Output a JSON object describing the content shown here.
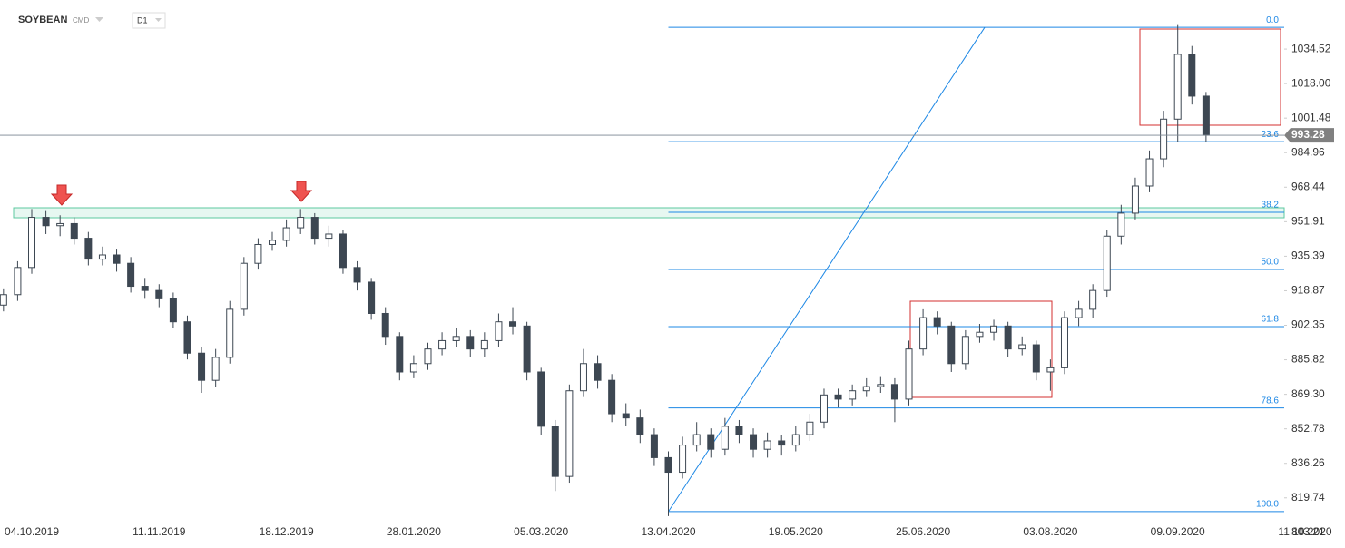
{
  "header": {
    "symbol": "SOYBEAN",
    "market": "CMD",
    "timeframe": "D1"
  },
  "chart_data": {
    "type": "candlestick",
    "categories": [
      null,
      null,
      "04.10.2019",
      null,
      null,
      null,
      null,
      null,
      null,
      null,
      null,
      "11.11.2019",
      null,
      null,
      null,
      null,
      null,
      null,
      null,
      null,
      "18.12.2019",
      null,
      null,
      null,
      null,
      null,
      null,
      null,
      null,
      "28.01.2020",
      null,
      null,
      null,
      null,
      null,
      null,
      null,
      null,
      "05.03.2020",
      null,
      null,
      null,
      null,
      null,
      null,
      null,
      null,
      "13.04.2020",
      null,
      null,
      null,
      null,
      null,
      null,
      null,
      null,
      "19.05.2020",
      null,
      null,
      null,
      null,
      null,
      null,
      null,
      null,
      "25.06.2020",
      null,
      null,
      null,
      null,
      null,
      null,
      null,
      null,
      "03.08.2020",
      null,
      null,
      null,
      null,
      null,
      null,
      null,
      null,
      "09.09.2020",
      null,
      null,
      null,
      null,
      null,
      null,
      null,
      null,
      "11.10.2020"
    ],
    "values": [
      [
        912,
        920,
        909,
        917
      ],
      [
        917,
        933,
        914,
        930
      ],
      [
        930,
        958,
        927,
        954
      ],
      [
        954,
        957,
        946,
        950
      ],
      [
        950,
        955,
        945,
        951
      ],
      [
        951,
        954,
        941,
        944
      ],
      [
        944,
        947,
        931,
        934
      ],
      [
        934,
        940,
        931,
        936
      ],
      [
        936,
        939,
        928,
        932
      ],
      [
        932,
        935,
        918,
        921
      ],
      [
        921,
        925,
        915,
        919
      ],
      [
        919,
        922,
        911,
        915
      ],
      [
        915,
        918,
        901,
        904
      ],
      [
        904,
        907,
        886,
        889
      ],
      [
        889,
        892,
        870,
        876
      ],
      [
        876,
        891,
        873,
        887
      ],
      [
        887,
        914,
        884,
        910
      ],
      [
        910,
        935,
        907,
        932
      ],
      [
        932,
        944,
        929,
        941
      ],
      [
        941,
        947,
        938,
        943
      ],
      [
        943,
        953,
        940,
        949
      ],
      [
        949,
        958,
        946,
        954
      ],
      [
        954,
        956,
        941,
        944
      ],
      [
        944,
        950,
        940,
        946
      ],
      [
        946,
        948,
        927,
        930
      ],
      [
        930,
        933,
        919,
        923
      ],
      [
        923,
        925,
        905,
        908
      ],
      [
        908,
        911,
        893,
        897
      ],
      [
        897,
        899,
        876,
        880
      ],
      [
        880,
        888,
        877,
        884
      ],
      [
        884,
        894,
        881,
        891
      ],
      [
        891,
        899,
        888,
        895
      ],
      [
        895,
        901,
        892,
        897
      ],
      [
        897,
        900,
        887,
        891
      ],
      [
        891,
        899,
        887,
        895
      ],
      [
        895,
        908,
        892,
        904
      ],
      [
        904,
        911,
        898,
        902
      ],
      [
        902,
        904,
        876,
        880
      ],
      [
        880,
        882,
        850,
        854
      ],
      [
        854,
        857,
        823,
        830
      ],
      [
        830,
        874,
        827,
        871
      ],
      [
        871,
        891,
        868,
        884
      ],
      [
        884,
        888,
        872,
        876
      ],
      [
        876,
        879,
        856,
        860
      ],
      [
        860,
        865,
        854,
        858
      ],
      [
        858,
        862,
        846,
        850
      ],
      [
        850,
        853,
        835,
        839
      ],
      [
        839,
        842,
        811,
        832
      ],
      [
        832,
        849,
        829,
        845
      ],
      [
        845,
        856,
        842,
        850
      ],
      [
        850,
        853,
        839,
        843
      ],
      [
        843,
        858,
        840,
        854
      ],
      [
        854,
        857,
        846,
        850
      ],
      [
        850,
        853,
        839,
        843
      ],
      [
        843,
        851,
        839,
        847
      ],
      [
        847,
        850,
        840,
        845
      ],
      [
        845,
        854,
        842,
        850
      ],
      [
        850,
        860,
        847,
        856
      ],
      [
        856,
        872,
        853,
        869
      ],
      [
        869,
        872,
        863,
        867
      ],
      [
        867,
        874,
        864,
        871
      ],
      [
        871,
        877,
        868,
        873
      ],
      [
        873,
        878,
        870,
        874
      ],
      [
        874,
        877,
        856,
        867
      ],
      [
        867,
        895,
        864,
        891
      ],
      [
        891,
        910,
        888,
        906
      ],
      [
        906,
        909,
        898,
        902
      ],
      [
        902,
        904,
        880,
        884
      ],
      [
        884,
        900,
        881,
        897
      ],
      [
        897,
        903,
        894,
        899
      ],
      [
        899,
        905,
        895,
        902
      ],
      [
        902,
        904,
        887,
        891
      ],
      [
        891,
        897,
        888,
        893
      ],
      [
        893,
        895,
        876,
        880
      ],
      [
        880,
        886,
        871,
        882
      ],
      [
        882,
        909,
        879,
        906
      ],
      [
        906,
        914,
        902,
        910
      ],
      [
        910,
        922,
        906,
        919
      ],
      [
        919,
        948,
        916,
        945
      ],
      [
        945,
        960,
        941,
        956
      ],
      [
        956,
        973,
        953,
        969
      ],
      [
        969,
        986,
        966,
        982
      ],
      [
        982,
        1005,
        978,
        1001
      ],
      [
        1001,
        1046,
        990,
        1032
      ],
      [
        1032,
        1036,
        1008,
        1012
      ],
      [
        1012,
        1014,
        990,
        993.28
      ],
      null,
      null,
      null,
      null,
      null,
      null,
      null
    ],
    "ylim": [
      797.5,
      1058
    ],
    "yticks": [
      1034.52,
      {
        "value": 1018,
        "label": "1018.00"
      },
      1001.48,
      984.96,
      968.44,
      951.91,
      935.39,
      918.87,
      902.35,
      885.82,
      {
        "value": 869.3,
        "label": "869.30"
      },
      852.78,
      836.26,
      819.74,
      803.21
    ],
    "up_color": "#ffffff",
    "down_color": "#3d4752",
    "fibonacci": {
      "high": 1044.9,
      "low": 813.2,
      "color": "#1e88e5",
      "levels": [
        {
          "value": 0,
          "label": "0.0"
        },
        {
          "value": 23.6,
          "label": "23.6"
        },
        {
          "value": 38.2,
          "label": "38.2"
        },
        {
          "value": 50,
          "label": "50.0"
        },
        {
          "value": 61.8,
          "label": "61.8"
        },
        {
          "value": 78.6,
          "label": "78.6"
        },
        {
          "value": 100,
          "label": "100.0"
        }
      ]
    }
  }
}
